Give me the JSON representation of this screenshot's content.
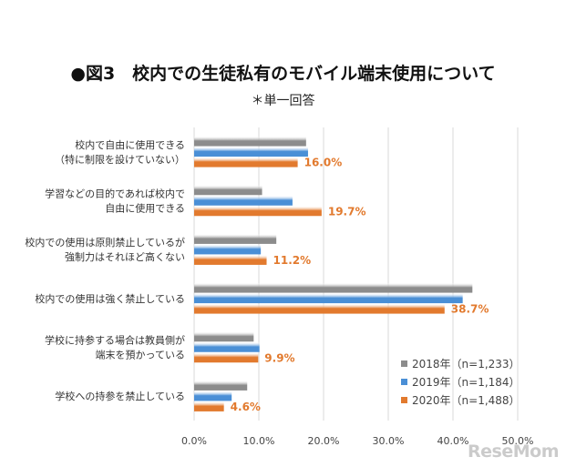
{
  "title": "●図3　校内での生徒私有のモバイル端末使用について",
  "subtitle": "＊単一回答",
  "watermark": "ReseMom",
  "chart_data": {
    "type": "bar",
    "orientation": "horizontal",
    "categories": [
      [
        "校内で自由に使用できる",
        "（特に制限を設けていない）"
      ],
      [
        "学習などの目的であれば校内で",
        "自由に使用できる"
      ],
      [
        "校内での使用は原則禁止しているが",
        "強制力はそれほど高くない"
      ],
      [
        "校内での使用は強く禁止している"
      ],
      [
        "学校に持参する場合は教員側が",
        "端末を預かっている"
      ],
      [
        "学校への持参を禁止している"
      ]
    ],
    "series": [
      {
        "name": "2018年（n=1,233）",
        "color": "#8c8c8c",
        "values": [
          17.3,
          10.5,
          12.7,
          43.0,
          9.2,
          8.2
        ]
      },
      {
        "name": "2019年（n=1,184）",
        "color": "#4a8fd6",
        "values": [
          17.6,
          15.2,
          10.3,
          41.5,
          10.1,
          5.8
        ]
      },
      {
        "name": "2020年（n=1,488）",
        "color": "#e27a2e",
        "values": [
          16.0,
          19.7,
          11.2,
          38.7,
          9.9,
          4.6
        ]
      }
    ],
    "data_labels": [
      "16.0%",
      "19.7%",
      "11.2%",
      "38.7%",
      "9.9%",
      "4.6%"
    ],
    "xlim": [
      0,
      50
    ],
    "xticks": [
      0,
      10,
      20,
      30,
      40,
      50
    ],
    "xtick_labels": [
      "0.0%",
      "10.0%",
      "20.0%",
      "30.0%",
      "40.0%",
      "50.0%"
    ],
    "grid": true,
    "legend_position": "bottom-right"
  }
}
